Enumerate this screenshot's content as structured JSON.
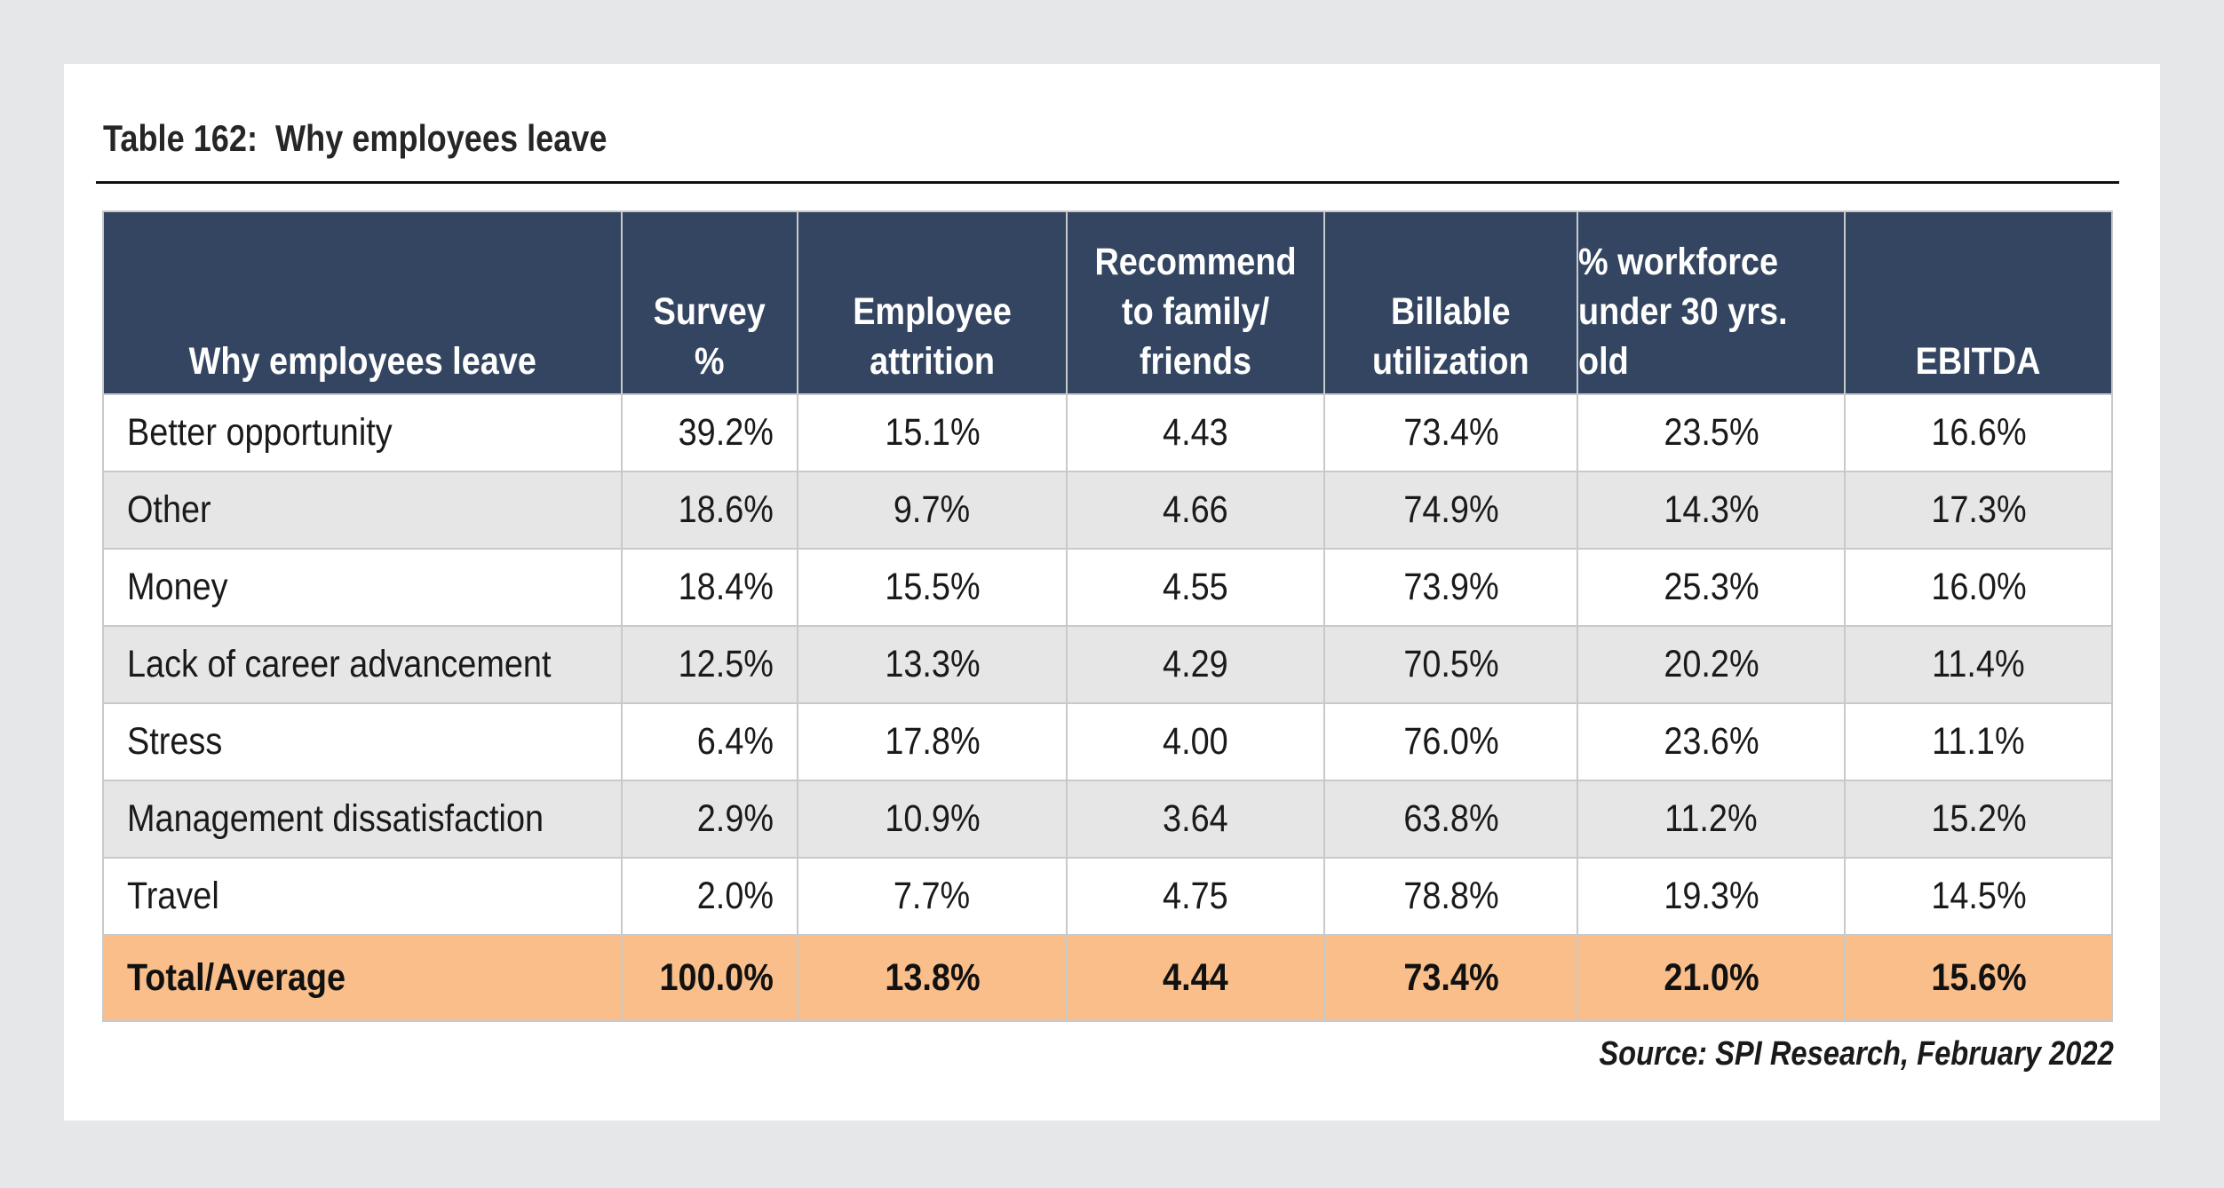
{
  "caption": "Table 162:  Why employees leave",
  "table": {
    "headers": [
      "Why employees leave",
      "Survey %",
      "Employee attrition",
      "Recommend to family/ friends",
      "Billable utilization",
      "% workforce under 30 yrs. old",
      "EBITDA"
    ],
    "header_lines": [
      [
        "Why employees leave"
      ],
      [
        "Survey",
        "%"
      ],
      [
        "Employee",
        "attrition"
      ],
      [
        "Recommend",
        "to family/",
        "friends"
      ],
      [
        "Billable",
        "utilization"
      ],
      [
        "% workforce",
        "under 30 yrs.",
        "old"
      ],
      [
        "EBITDA"
      ]
    ],
    "rows": [
      [
        "Better opportunity",
        "39.2%",
        "15.1%",
        "4.43",
        "73.4%",
        "23.5%",
        "16.6%"
      ],
      [
        "Other",
        "18.6%",
        "9.7%",
        "4.66",
        "74.9%",
        "14.3%",
        "17.3%"
      ],
      [
        "Money",
        "18.4%",
        "15.5%",
        "4.55",
        "73.9%",
        "25.3%",
        "16.0%"
      ],
      [
        "Lack of career advancement",
        "12.5%",
        "13.3%",
        "4.29",
        "70.5%",
        "20.2%",
        "11.4%"
      ],
      [
        "Stress",
        "6.4%",
        "17.8%",
        "4.00",
        "76.0%",
        "23.6%",
        "11.1%"
      ],
      [
        "Management dissatisfaction",
        "2.9%",
        "10.9%",
        "3.64",
        "63.8%",
        "11.2%",
        "15.2%"
      ],
      [
        "Travel",
        "2.0%",
        "7.7%",
        "4.75",
        "78.8%",
        "19.3%",
        "14.5%"
      ]
    ],
    "total": [
      "Total/Average",
      "100.0%",
      "13.8%",
      "4.44",
      "73.4%",
      "21.0%",
      "15.6%"
    ]
  },
  "source": "Source: SPI Research, February 2022",
  "colors": {
    "header_bg": "#344561",
    "header_text": "#ffffff",
    "row_alt_bg": "#e6e6e6",
    "total_bg": "#f9be8a",
    "page_bg": "#e6e7e9"
  }
}
